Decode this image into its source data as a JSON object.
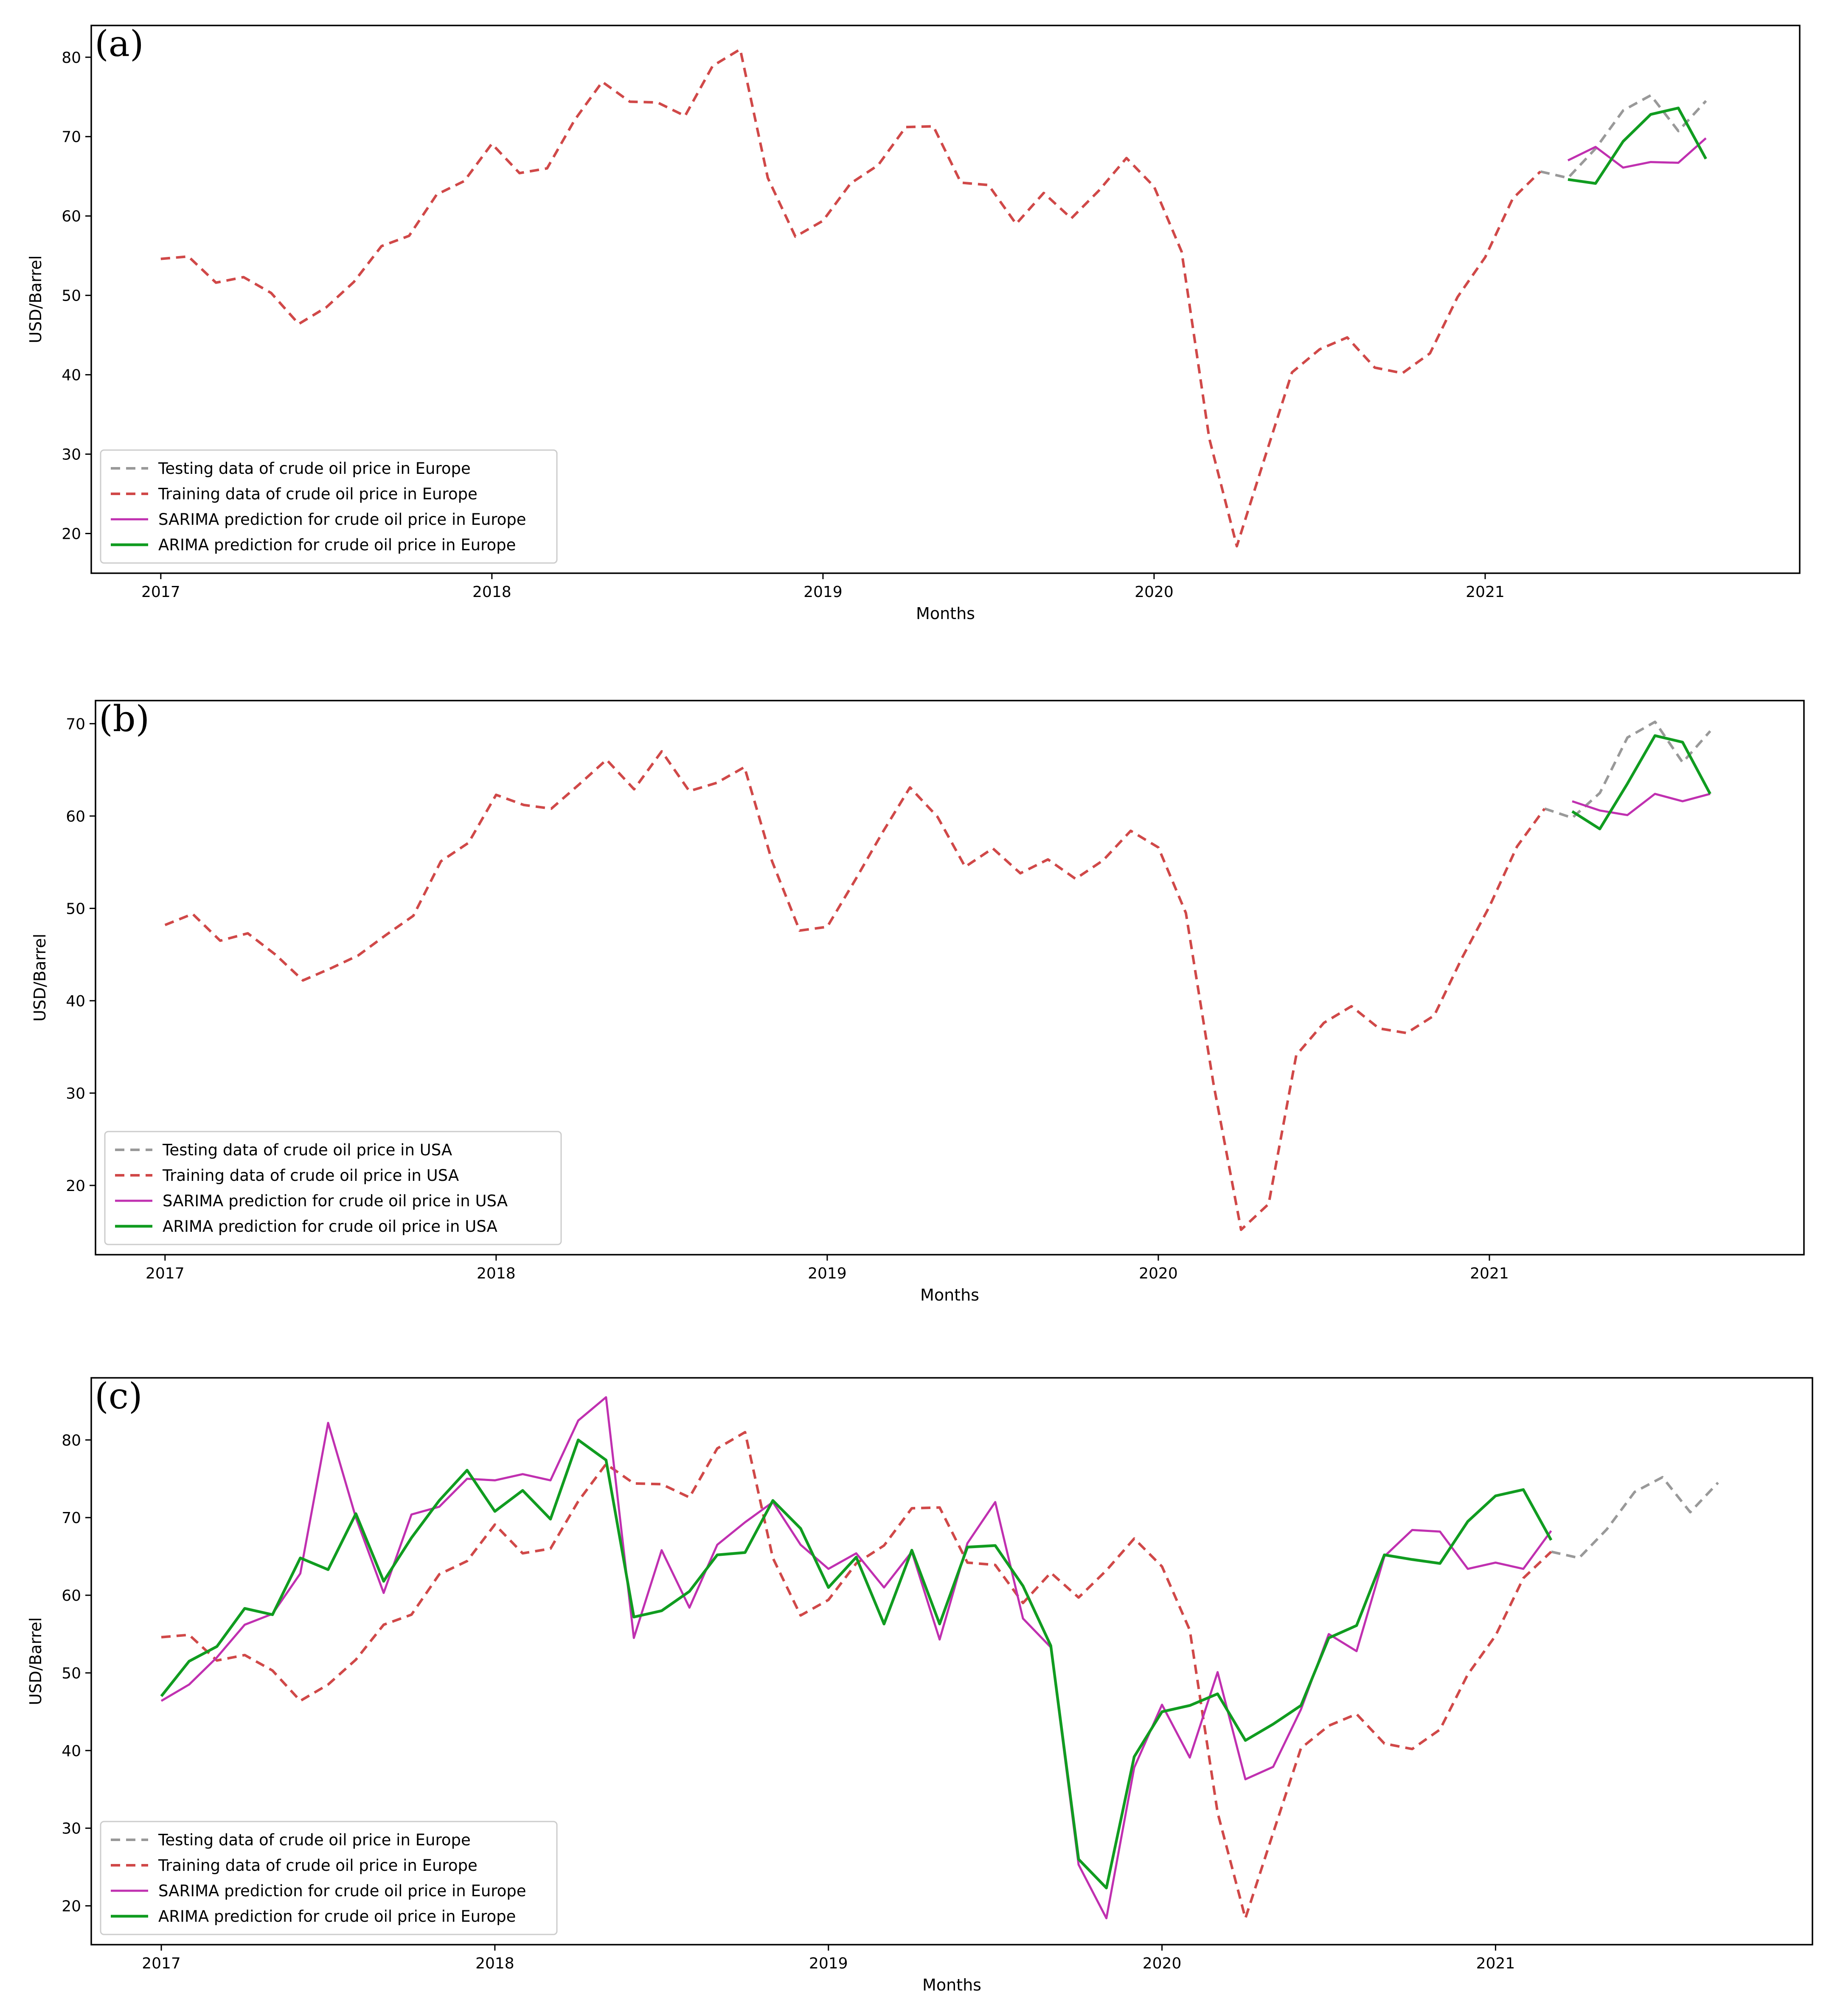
{
  "colors": {
    "testing": "#999999",
    "training": "#d04848",
    "sarima": "#c030b0",
    "arima": "#109c20"
  },
  "chart_data": [
    {
      "panel": "(a)",
      "type": "line",
      "xlabel": "Months",
      "ylabel": "USD/Barrel",
      "xlim": [
        2016.79,
        2021.95
      ],
      "ylim": [
        15,
        84
      ],
      "xticks": [
        2017,
        2018,
        2019,
        2020,
        2021
      ],
      "yticks": [
        20,
        30,
        40,
        50,
        60,
        70,
        80
      ],
      "legend_position": "lower-left",
      "series": [
        {
          "key": "testing",
          "name": "Testing data of crude oil price in Europe",
          "style": "dashed",
          "x_start": 2021.167,
          "values": [
            65.6,
            64.8,
            68.5,
            73.3,
            75.2,
            70.7,
            74.5
          ]
        },
        {
          "key": "training",
          "name": "Training data of crude oil price in Europe",
          "style": "dashed",
          "x_start": 2017.0,
          "values": [
            54.6,
            54.9,
            51.6,
            52.3,
            50.3,
            46.4,
            48.5,
            51.7,
            56.2,
            57.5,
            62.7,
            64.4,
            69.1,
            65.4,
            66.0,
            72.1,
            76.9,
            74.4,
            74.3,
            72.6,
            78.9,
            81.0,
            64.8,
            57.4,
            59.4,
            64.1,
            66.4,
            71.2,
            71.3,
            64.2,
            63.9,
            59.0,
            62.9,
            59.7,
            63.2,
            67.3,
            63.7,
            55.5,
            32.0,
            18.4,
            29.4,
            40.3,
            43.2,
            44.7,
            40.9,
            40.2,
            42.7,
            49.8,
            54.8,
            62.2,
            65.6
          ]
        },
        {
          "key": "sarima",
          "name": "SARIMA prediction for crude oil price in Europe",
          "style": "solid",
          "x_start": 2021.25,
          "values": [
            67.0,
            68.7,
            66.1,
            66.8,
            66.7,
            69.8
          ]
        },
        {
          "key": "arima",
          "name": "ARIMA prediction for crude oil price in Europe",
          "style": "solid",
          "x_start": 2021.25,
          "values": [
            64.6,
            64.1,
            69.4,
            72.8,
            73.6,
            67.2
          ]
        }
      ]
    },
    {
      "panel": "(b)",
      "type": "line",
      "xlabel": "Months",
      "ylabel": "USD/Barrel",
      "xlim": [
        2016.79,
        2021.95
      ],
      "ylim": [
        12.5,
        72.5
      ],
      "xticks": [
        2017,
        2018,
        2019,
        2020,
        2021
      ],
      "yticks": [
        20,
        30,
        40,
        50,
        60,
        70
      ],
      "legend_position": "lower-left",
      "series": [
        {
          "key": "testing",
          "name": "Testing data of crude oil price in USA",
          "style": "dashed",
          "x_start": 2021.167,
          "values": [
            60.8,
            59.8,
            62.5,
            68.5,
            70.2,
            65.8,
            69.2
          ]
        },
        {
          "key": "training",
          "name": "Training data of crude oil price in USA",
          "style": "dashed",
          "x_start": 2017.0,
          "values": [
            48.2,
            49.4,
            46.5,
            47.3,
            45.0,
            42.2,
            43.5,
            44.9,
            47.1,
            49.2,
            55.1,
            57.1,
            62.3,
            61.2,
            60.8,
            63.4,
            66.1,
            62.9,
            67.0,
            62.7,
            63.6,
            65.3,
            55.1,
            47.6,
            48.0,
            53.0,
            58.2,
            63.1,
            59.9,
            54.5,
            56.5,
            53.8,
            55.3,
            53.2,
            55.2,
            58.4,
            56.6,
            49.5,
            31.0,
            15.2,
            18.0,
            34.1,
            37.6,
            39.4,
            37.0,
            36.5,
            38.4,
            44.6,
            50.2,
            56.7,
            60.8
          ]
        },
        {
          "key": "sarima",
          "name": "SARIMA prediction for crude oil price in USA",
          "style": "solid",
          "x_start": 2021.25,
          "values": [
            61.6,
            60.6,
            60.1,
            62.4,
            61.6,
            62.4
          ]
        },
        {
          "key": "arima",
          "name": "ARIMA prediction for crude oil price in USA",
          "style": "solid",
          "x_start": 2021.25,
          "values": [
            60.5,
            58.6,
            63.5,
            68.7,
            68.0,
            62.4
          ]
        }
      ]
    },
    {
      "panel": "(c)",
      "type": "line",
      "xlabel": "Months",
      "ylabel": "USD/Barrel",
      "xlim": [
        2016.79,
        2021.95
      ],
      "ylim": [
        15,
        88
      ],
      "xticks": [
        2017,
        2018,
        2019,
        2020,
        2021
      ],
      "yticks": [
        20,
        30,
        40,
        50,
        60,
        70,
        80
      ],
      "legend_position": "lower-left",
      "series": [
        {
          "key": "testing",
          "name": "Testing data of crude oil price in Europe",
          "style": "dashed",
          "x_start": 2021.167,
          "values": [
            65.6,
            64.8,
            68.5,
            73.3,
            75.2,
            70.7,
            74.5
          ]
        },
        {
          "key": "training",
          "name": "Training data of crude oil price in Europe",
          "style": "dashed",
          "x_start": 2017.0,
          "values": [
            54.6,
            54.9,
            51.6,
            52.3,
            50.3,
            46.4,
            48.5,
            51.7,
            56.2,
            57.5,
            62.7,
            64.4,
            69.1,
            65.4,
            66.0,
            72.1,
            76.9,
            74.4,
            74.3,
            72.6,
            78.9,
            81.0,
            64.8,
            57.4,
            59.4,
            64.1,
            66.4,
            71.2,
            71.3,
            64.2,
            63.9,
            59.0,
            62.9,
            59.7,
            63.2,
            67.3,
            63.7,
            55.5,
            32.0,
            18.4,
            29.4,
            40.3,
            43.2,
            44.7,
            40.9,
            40.2,
            42.7,
            49.8,
            54.8,
            62.2,
            65.6
          ]
        },
        {
          "key": "sarima",
          "name": "SARIMA prediction for crude oil price in Europe",
          "style": "solid",
          "x_start": 2017.0,
          "values": [
            46.4,
            48.5,
            52.0,
            56.2,
            57.6,
            62.8,
            82.2,
            70.0,
            60.3,
            70.4,
            71.4,
            75.0,
            74.8,
            75.6,
            74.8,
            82.5,
            85.5,
            54.5,
            65.8,
            58.4,
            66.5,
            69.4,
            72.0,
            66.5,
            63.4,
            65.4,
            61.0,
            65.6,
            54.3,
            66.7,
            72.0,
            57.0,
            53.3,
            25.3,
            18.4,
            37.8,
            45.9,
            39.1,
            50.1,
            36.3,
            37.9,
            45.3,
            55.0,
            52.8,
            65.0,
            68.4,
            68.2,
            63.4,
            64.2,
            63.4,
            68.3
          ]
        },
        {
          "key": "arima",
          "name": "ARIMA prediction for crude oil price in Europe",
          "style": "solid",
          "x_start": 2017.0,
          "values": [
            47.0,
            51.5,
            53.4,
            58.3,
            57.5,
            64.8,
            63.3,
            70.5,
            61.8,
            67.4,
            72.2,
            76.1,
            70.8,
            73.5,
            69.8,
            80.0,
            77.4,
            57.2,
            58.0,
            60.5,
            65.2,
            65.5,
            72.2,
            68.6,
            61.0,
            64.9,
            56.3,
            65.8,
            56.3,
            66.2,
            66.4,
            61.2,
            53.5,
            26.0,
            22.3,
            39.2,
            45.0,
            45.8,
            47.3,
            41.3,
            43.4,
            45.8,
            54.5,
            56.1,
            65.2,
            64.6,
            64.1,
            69.5,
            72.8,
            73.6,
            67.1
          ]
        }
      ]
    }
  ]
}
